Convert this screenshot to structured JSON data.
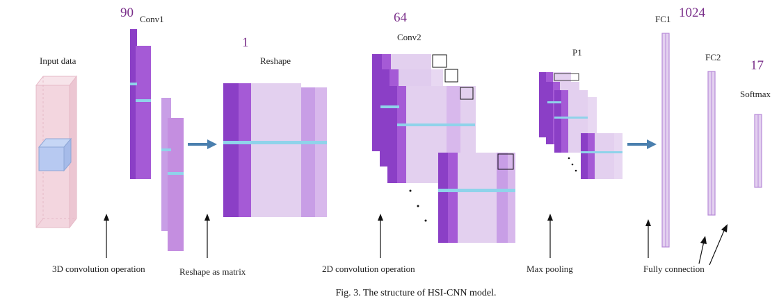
{
  "labels": {
    "input_data": "Input data",
    "conv1": "Conv1",
    "reshape": "Reshape",
    "conv2": "Conv2",
    "p1": "P1",
    "fc1": "FC1",
    "fc2": "FC2",
    "softmax": "Softmax"
  },
  "numbers": {
    "conv1_count": "90",
    "reshape_count": "1",
    "conv2_count": "64",
    "fc1_count": "1024",
    "softmax_count": "17"
  },
  "operations": {
    "op_3d": "3D convolution operation",
    "op_reshape": "Reshape as matrix",
    "op_2d": "2D convolution operation",
    "op_pool": "Max pooling",
    "op_fc": "Fully connection"
  },
  "caption": "Fig. 3. The structure of HSI-CNN model.",
  "colors": {
    "purple_dark": "#8b3fc6",
    "purple_mid": "#a55ad6",
    "purple_light": "#c89ee6",
    "lavender": "#e3d0ef",
    "cyan": "#8fd3ea",
    "arrow_blue": "#4a7fae",
    "pink": "#f3d6df",
    "number": "#7a2f8a"
  }
}
